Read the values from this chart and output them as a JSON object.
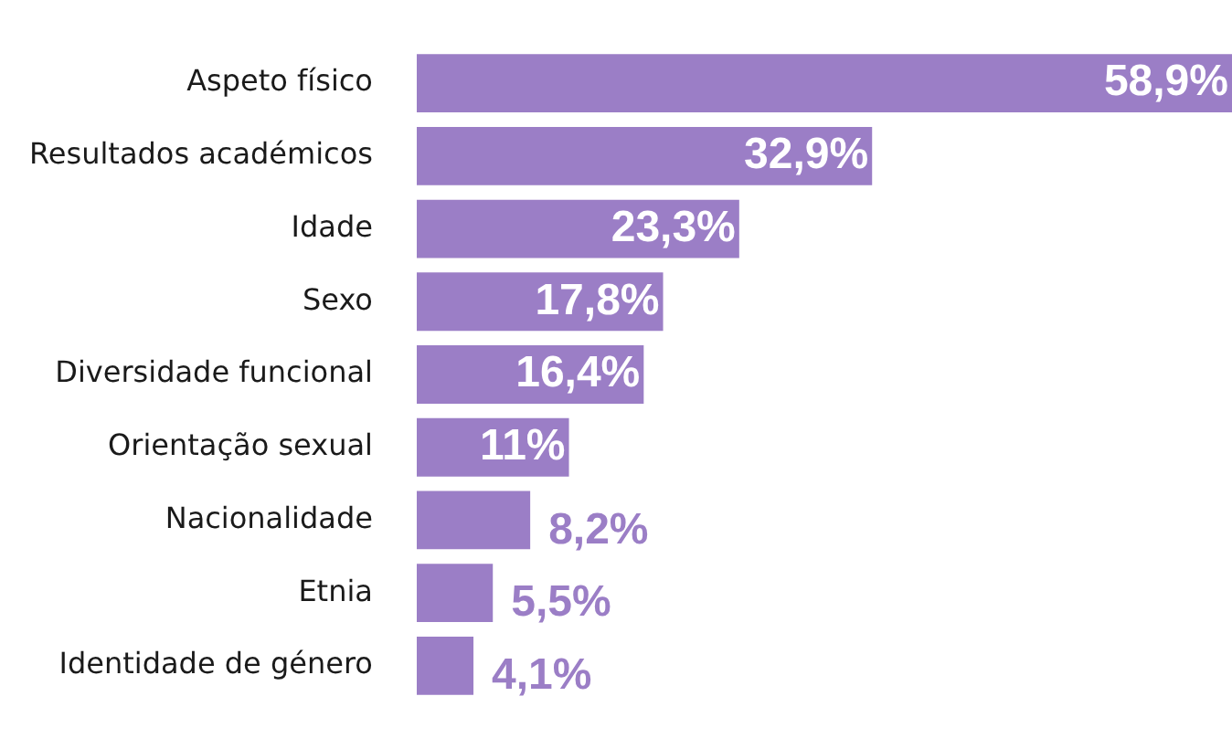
{
  "chart_data": {
    "type": "bar",
    "orientation": "horizontal",
    "categories": [
      "Aspeto físico",
      "Resultados académicos",
      "Idade",
      "Sexo",
      "Diversidade funcional",
      "Orientação sexual",
      "Nacionalidade",
      "Etnia",
      "Identidade de género"
    ],
    "values": [
      58.9,
      32.9,
      23.3,
      17.8,
      16.4,
      11,
      8.2,
      5.5,
      4.1
    ],
    "value_labels": [
      "58,9%",
      "32,9%",
      "23,3%",
      "17,8%",
      "16,4%",
      "11%",
      "8,2%",
      "5,5%",
      "4,1%"
    ],
    "color": "#9b7ec6",
    "legend": false
  }
}
